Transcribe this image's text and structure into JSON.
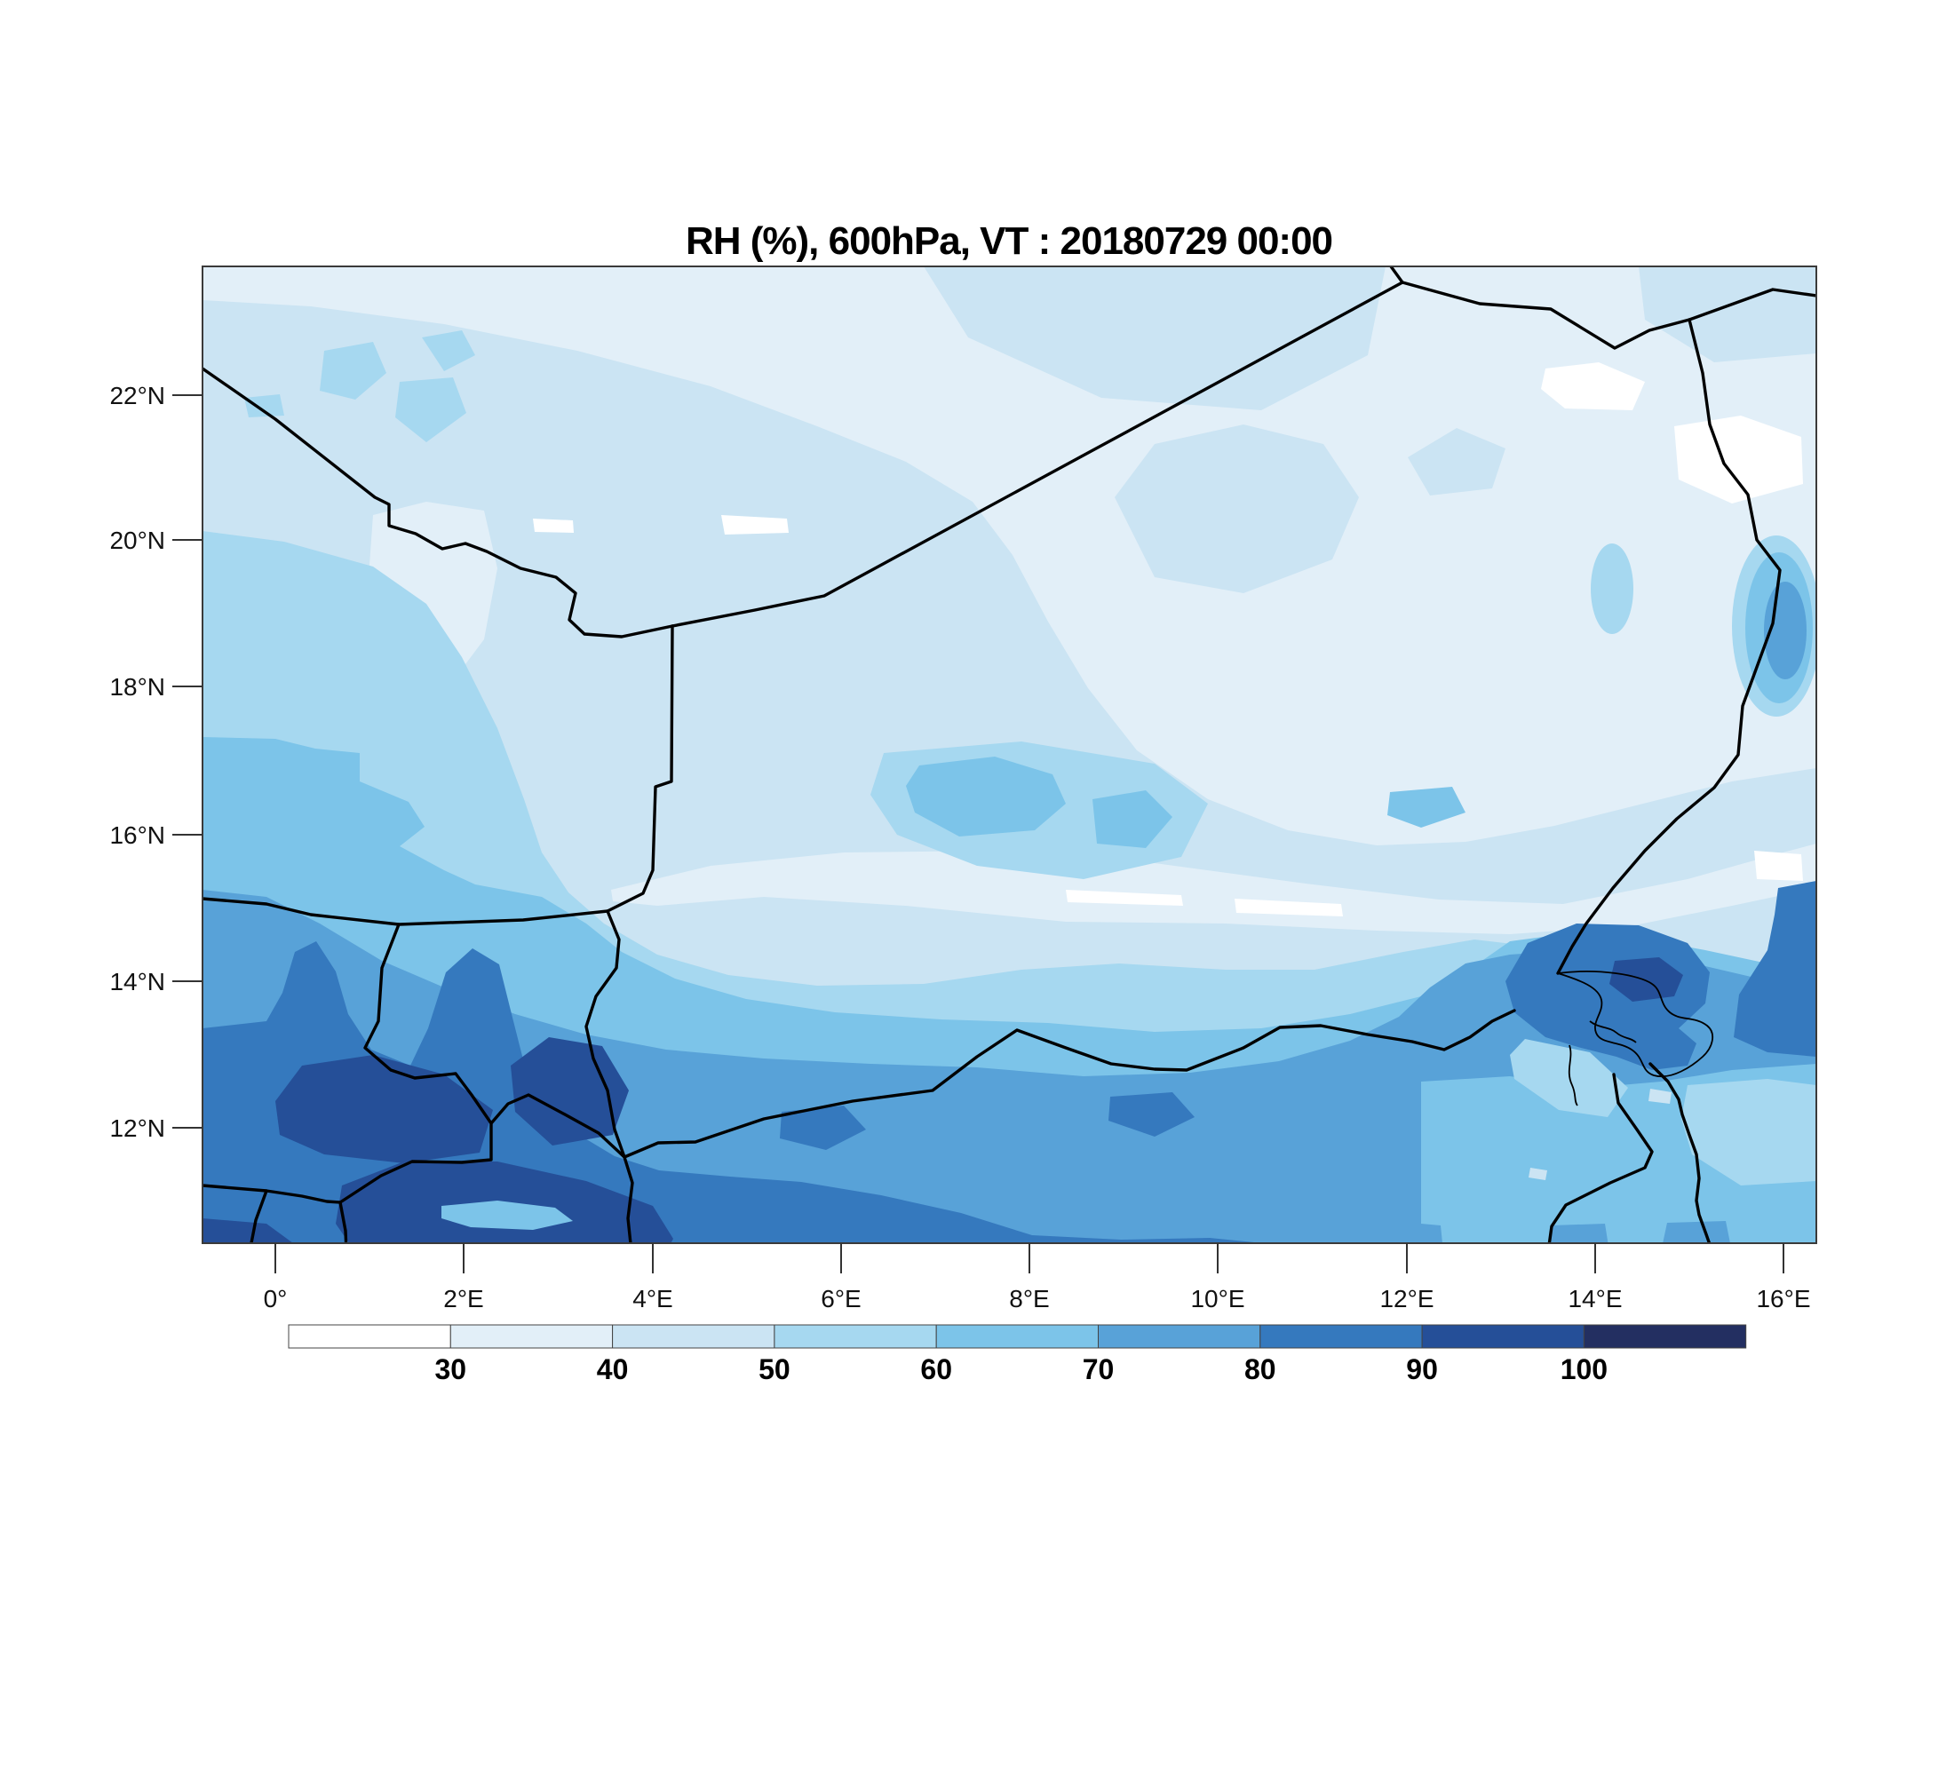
{
  "title": "RH (%), 600hPa, VT : 20180729  00:00",
  "chart_data": {
    "type": "heatmap",
    "subtype": "filled_contour_weather_map",
    "field": "Relative humidity (%)",
    "pressure_level": "600hPa",
    "valid_time_label": "VT : 20180729  00:00",
    "x_axis": {
      "ticks": [
        {
          "label": "0°",
          "px": 310
        },
        {
          "label": "2°E",
          "px": 522
        },
        {
          "label": "4°E",
          "px": 735
        },
        {
          "label": "6°E",
          "px": 947
        },
        {
          "label": "8°E",
          "px": 1159
        },
        {
          "label": "10°E",
          "px": 1371
        },
        {
          "label": "12°E",
          "px": 1584
        },
        {
          "label": "14°E",
          "px": 1796
        },
        {
          "label": "16°E",
          "px": 2008
        }
      ]
    },
    "y_axis": {
      "ticks": [
        {
          "label": "22°N",
          "px": 445
        },
        {
          "label": "20°N",
          "px": 608
        },
        {
          "label": "18°N",
          "px": 773
        },
        {
          "label": "16°N",
          "px": 940
        },
        {
          "label": "14°N",
          "px": 1105
        },
        {
          "label": "12°N",
          "px": 1270
        }
      ]
    },
    "colorbar": {
      "tick_labels": [
        "30",
        "40",
        "50",
        "60",
        "70",
        "80",
        "90",
        "100"
      ],
      "segment_colors": [
        "#ffffff",
        "#e2eff8",
        "#cbe4f3",
        "#a6d8f0",
        "#7cc4e9",
        "#58a2d8",
        "#3579be",
        "#254f98",
        "#232f61"
      ],
      "levels_meaning": "RH % bands: <30, 30-40, 40-50, 50-60, 60-70, 70-80, 80-90, 90-100, >100",
      "palette": {
        "c0": "#ffffff",
        "c1": "#e2eff8",
        "c2": "#cbe4f3",
        "c3": "#a6d8f0",
        "c4": "#7cc4e9",
        "c5": "#58a2d8",
        "c6": "#3579be",
        "c7": "#254f98",
        "c8": "#232f61"
      }
    },
    "features": [
      "Dry air (RH 30-50%, locally <30%) over the northern half of the domain (Sahara), driest pockets near 14-16E / 20-22N",
      "Pale dry streak (RH ~30-40%) stretching ENE near 14.5-15.5N from about 4E to the eastern edge",
      "Moist air (RH 60-90%) across the south, with RH >90% cores over the southwest (0-5E, 11-13N) and near Lake Chad (13-15E, ~13.5N)",
      "Black overlays are national boundaries and the Lake Chad shoreline"
    ]
  }
}
